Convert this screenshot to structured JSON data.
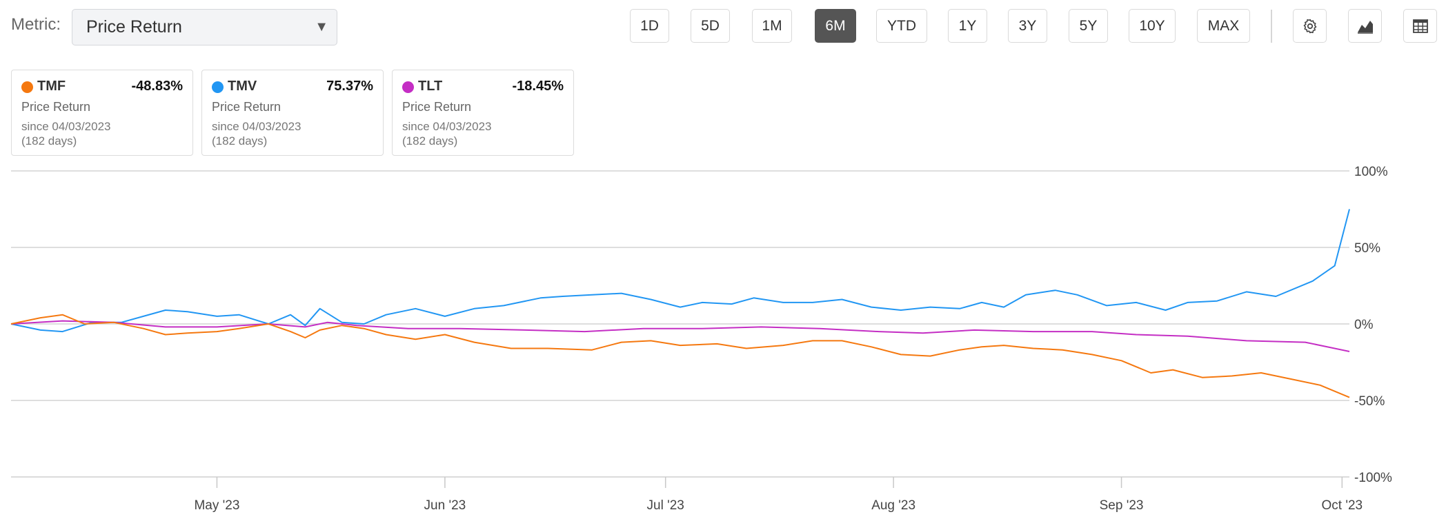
{
  "metric": {
    "label": "Metric:",
    "selected": "Price Return"
  },
  "ranges": [
    "1D",
    "5D",
    "1M",
    "6M",
    "YTD",
    "1Y",
    "3Y",
    "5Y",
    "10Y",
    "MAX"
  ],
  "active_range": "6M",
  "tools": [
    "gear-icon",
    "chart-type-icon",
    "table-icon"
  ],
  "cards": [
    {
      "ticker": "TMF",
      "value": "-48.83%",
      "metric": "Price Return",
      "since": "since 04/03/2023",
      "days": "(182 days)",
      "color": "#f5780f"
    },
    {
      "ticker": "TMV",
      "value": "75.37%",
      "metric": "Price Return",
      "since": "since 04/03/2023",
      "days": "(182 days)",
      "color": "#2196f3"
    },
    {
      "ticker": "TLT",
      "value": "-18.45%",
      "metric": "Price Return",
      "since": "since 04/03/2023",
      "days": "(182 days)",
      "color": "#c42ec4"
    }
  ],
  "chart_data": {
    "type": "line",
    "x_start": "2023-04-03",
    "x_end": "2023-10-02",
    "xticks": [
      {
        "label": "May '23",
        "date": "2023-05-01"
      },
      {
        "label": "Jun '23",
        "date": "2023-06-01"
      },
      {
        "label": "Jul '23",
        "date": "2023-07-01"
      },
      {
        "label": "Aug '23",
        "date": "2023-08-01"
      },
      {
        "label": "Sep '23",
        "date": "2023-09-01"
      },
      {
        "label": "Oct '23",
        "date": "2023-10-01"
      }
    ],
    "yticks": [
      {
        "label": "100%",
        "value": 100
      },
      {
        "label": "50%",
        "value": 50
      },
      {
        "label": "0%",
        "value": 0
      },
      {
        "label": "-50%",
        "value": -50
      },
      {
        "label": "-100%",
        "value": -100
      }
    ],
    "ylim": [
      -100,
      100
    ],
    "grid": true,
    "series": [
      {
        "name": "TMV",
        "color": "#2196f3",
        "points": [
          [
            "2023-04-03",
            0
          ],
          [
            "2023-04-07",
            -4
          ],
          [
            "2023-04-10",
            -5
          ],
          [
            "2023-04-14",
            1
          ],
          [
            "2023-04-18",
            1
          ],
          [
            "2023-04-21",
            5
          ],
          [
            "2023-04-24",
            9
          ],
          [
            "2023-04-27",
            8
          ],
          [
            "2023-05-01",
            5
          ],
          [
            "2023-05-04",
            6
          ],
          [
            "2023-05-08",
            0
          ],
          [
            "2023-05-11",
            6
          ],
          [
            "2023-05-13",
            -1
          ],
          [
            "2023-05-15",
            10
          ],
          [
            "2023-05-18",
            1
          ],
          [
            "2023-05-21",
            0
          ],
          [
            "2023-05-24",
            6
          ],
          [
            "2023-05-28",
            10
          ],
          [
            "2023-06-01",
            5
          ],
          [
            "2023-06-05",
            10
          ],
          [
            "2023-06-09",
            12
          ],
          [
            "2023-06-14",
            17
          ],
          [
            "2023-06-17",
            18
          ],
          [
            "2023-06-21",
            19
          ],
          [
            "2023-06-25",
            20
          ],
          [
            "2023-06-29",
            16
          ],
          [
            "2023-07-03",
            11
          ],
          [
            "2023-07-06",
            14
          ],
          [
            "2023-07-10",
            13
          ],
          [
            "2023-07-13",
            17
          ],
          [
            "2023-07-17",
            14
          ],
          [
            "2023-07-21",
            14
          ],
          [
            "2023-07-25",
            16
          ],
          [
            "2023-07-29",
            11
          ],
          [
            "2023-08-02",
            9
          ],
          [
            "2023-08-06",
            11
          ],
          [
            "2023-08-10",
            10
          ],
          [
            "2023-08-13",
            14
          ],
          [
            "2023-08-16",
            11
          ],
          [
            "2023-08-19",
            19
          ],
          [
            "2023-08-23",
            22
          ],
          [
            "2023-08-26",
            19
          ],
          [
            "2023-08-30",
            12
          ],
          [
            "2023-09-03",
            14
          ],
          [
            "2023-09-07",
            9
          ],
          [
            "2023-09-10",
            14
          ],
          [
            "2023-09-14",
            15
          ],
          [
            "2023-09-18",
            21
          ],
          [
            "2023-09-22",
            18
          ],
          [
            "2023-09-27",
            28
          ],
          [
            "2023-09-30",
            38
          ],
          [
            "2023-10-02",
            75
          ]
        ]
      },
      {
        "name": "TLT",
        "color": "#c42ec4",
        "points": [
          [
            "2023-04-03",
            0
          ],
          [
            "2023-04-10",
            2
          ],
          [
            "2023-04-17",
            1
          ],
          [
            "2023-04-24",
            -2
          ],
          [
            "2023-05-01",
            -2
          ],
          [
            "2023-05-08",
            0
          ],
          [
            "2023-05-13",
            -2
          ],
          [
            "2023-05-16",
            1
          ],
          [
            "2023-05-20",
            -1
          ],
          [
            "2023-05-27",
            -3
          ],
          [
            "2023-06-03",
            -3
          ],
          [
            "2023-06-12",
            -4
          ],
          [
            "2023-06-20",
            -5
          ],
          [
            "2023-06-28",
            -3
          ],
          [
            "2023-07-06",
            -3
          ],
          [
            "2023-07-14",
            -2
          ],
          [
            "2023-07-22",
            -3
          ],
          [
            "2023-07-30",
            -5
          ],
          [
            "2023-08-05",
            -6
          ],
          [
            "2023-08-12",
            -4
          ],
          [
            "2023-08-20",
            -5
          ],
          [
            "2023-08-28",
            -5
          ],
          [
            "2023-09-03",
            -7
          ],
          [
            "2023-09-10",
            -8
          ],
          [
            "2023-09-18",
            -11
          ],
          [
            "2023-09-26",
            -12
          ],
          [
            "2023-10-02",
            -18
          ]
        ]
      },
      {
        "name": "TMF",
        "color": "#f5780f",
        "points": [
          [
            "2023-04-03",
            0
          ],
          [
            "2023-04-07",
            4
          ],
          [
            "2023-04-10",
            6
          ],
          [
            "2023-04-13",
            0
          ],
          [
            "2023-04-17",
            1
          ],
          [
            "2023-04-21",
            -3
          ],
          [
            "2023-04-24",
            -7
          ],
          [
            "2023-04-27",
            -6
          ],
          [
            "2023-05-01",
            -5
          ],
          [
            "2023-05-04",
            -3
          ],
          [
            "2023-05-08",
            0
          ],
          [
            "2023-05-11",
            -5
          ],
          [
            "2023-05-13",
            -9
          ],
          [
            "2023-05-15",
            -4
          ],
          [
            "2023-05-18",
            -1
          ],
          [
            "2023-05-21",
            -3
          ],
          [
            "2023-05-24",
            -7
          ],
          [
            "2023-05-28",
            -10
          ],
          [
            "2023-06-01",
            -7
          ],
          [
            "2023-06-05",
            -12
          ],
          [
            "2023-06-10",
            -16
          ],
          [
            "2023-06-15",
            -16
          ],
          [
            "2023-06-21",
            -17
          ],
          [
            "2023-06-25",
            -12
          ],
          [
            "2023-06-29",
            -11
          ],
          [
            "2023-07-03",
            -14
          ],
          [
            "2023-07-08",
            -13
          ],
          [
            "2023-07-12",
            -16
          ],
          [
            "2023-07-17",
            -14
          ],
          [
            "2023-07-21",
            -11
          ],
          [
            "2023-07-25",
            -11
          ],
          [
            "2023-07-29",
            -15
          ],
          [
            "2023-08-02",
            -20
          ],
          [
            "2023-08-06",
            -21
          ],
          [
            "2023-08-10",
            -17
          ],
          [
            "2023-08-13",
            -15
          ],
          [
            "2023-08-16",
            -14
          ],
          [
            "2023-08-20",
            -16
          ],
          [
            "2023-08-24",
            -17
          ],
          [
            "2023-08-28",
            -20
          ],
          [
            "2023-09-01",
            -24
          ],
          [
            "2023-09-05",
            -32
          ],
          [
            "2023-09-08",
            -30
          ],
          [
            "2023-09-12",
            -35
          ],
          [
            "2023-09-16",
            -34
          ],
          [
            "2023-09-20",
            -32
          ],
          [
            "2023-09-24",
            -36
          ],
          [
            "2023-09-28",
            -40
          ],
          [
            "2023-10-02",
            -48
          ]
        ]
      }
    ]
  }
}
